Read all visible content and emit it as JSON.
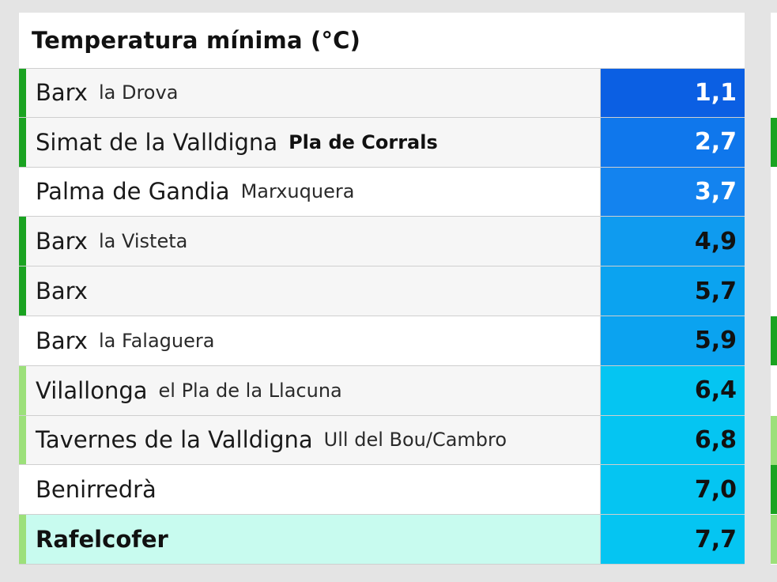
{
  "panel": {
    "title": "Temperatura mínima (°C)"
  },
  "rows": [
    {
      "name": "Barx",
      "sub": "la Drova",
      "value": "1,1",
      "stripe": "#1aa321",
      "bg": "#f6f6f6",
      "value_bg": "#0b5fe3",
      "value_color": "#ffffff",
      "name_bold": false,
      "sub_bold": false
    },
    {
      "name": "Simat de la Valldigna",
      "sub": "Pla de Corrals",
      "value": "2,7",
      "stripe": "#1aa321",
      "bg": "#f6f6f6",
      "value_bg": "#0f77ec",
      "value_color": "#ffffff",
      "name_bold": false,
      "sub_bold": true
    },
    {
      "name": "Palma de Gandia",
      "sub": "Marxuquera",
      "value": "3,7",
      "stripe": "#ffffff",
      "bg": "#ffffff",
      "value_bg": "#1383ef",
      "value_color": "#ffffff",
      "name_bold": false,
      "sub_bold": false
    },
    {
      "name": "Barx",
      "sub": "la Visteta",
      "value": "4,9",
      "stripe": "#1aa321",
      "bg": "#f6f6f6",
      "value_bg": "#0f9bef",
      "value_color": "#111111",
      "name_bold": false,
      "sub_bold": false
    },
    {
      "name": "Barx",
      "sub": "",
      "value": "5,7",
      "stripe": "#1aa321",
      "bg": "#f6f6f6",
      "value_bg": "#0ba3f0",
      "value_color": "#111111",
      "name_bold": false,
      "sub_bold": false
    },
    {
      "name": "Barx",
      "sub": "la Falaguera",
      "value": "5,9",
      "stripe": "#ffffff",
      "bg": "#ffffff",
      "value_bg": "#0ba3f0",
      "value_color": "#111111",
      "name_bold": false,
      "sub_bold": false
    },
    {
      "name": "Vilallonga",
      "sub": "el Pla de la Llacuna",
      "value": "6,4",
      "stripe": "#9ce07a",
      "bg": "#f6f6f6",
      "value_bg": "#05c5f2",
      "value_color": "#111111",
      "name_bold": false,
      "sub_bold": false
    },
    {
      "name": "Tavernes de la Valldigna",
      "sub": "Ull del Bou/Cambro",
      "value": "6,8",
      "stripe": "#9ce07a",
      "bg": "#f6f6f6",
      "value_bg": "#05c5f2",
      "value_color": "#111111",
      "name_bold": false,
      "sub_bold": false
    },
    {
      "name": "Benirredrà",
      "sub": "",
      "value": "7,0",
      "stripe": "#ffffff",
      "bg": "#ffffff",
      "value_bg": "#05c5f2",
      "value_color": "#111111",
      "name_bold": false,
      "sub_bold": false
    },
    {
      "name": "Rafelcofer",
      "sub": "",
      "value": "7,7",
      "stripe": "#9ce07a",
      "bg": "#c8fbef",
      "value_bg": "#05c5f2",
      "value_color": "#111111",
      "name_bold": true,
      "sub_bold": false
    }
  ],
  "right_column_stripes": [
    "#ffffff",
    "#1aa321",
    "#ffffff",
    "#ffffff",
    "#ffffff",
    "#1aa321",
    "#ffffff",
    "#9ce07a",
    "#1aa321",
    "#9ce07a"
  ]
}
